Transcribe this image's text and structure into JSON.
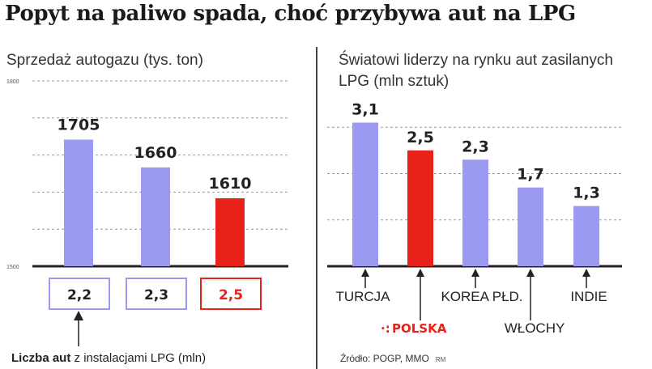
{
  "title": "Popyt na paliwo spada, choć przybywa aut na LPG",
  "colors": {
    "bar": "#9a9af0",
    "highlight": "#e8211b",
    "grid": "#999999",
    "axis": "#222222"
  },
  "chart_data": [
    {
      "type": "bar",
      "title": "Sprzedaż autogazu (tys. ton)",
      "categories": [
        "",
        "",
        ""
      ],
      "values": [
        1705,
        1660,
        1610
      ],
      "value_labels": [
        "1705",
        "1660",
        "1610"
      ],
      "highlight_index": 2,
      "ylim": [
        1500,
        1800
      ],
      "ytick_labels": [
        "1800",
        "1500"
      ],
      "grid": true,
      "secondary": {
        "label_bold": "Liczba aut",
        "label_rest": " z instalacjami LPG (mln)",
        "values": [
          "2,2",
          "2,3",
          "2,5"
        ]
      }
    },
    {
      "type": "bar",
      "title": "Światowi liderzy na rynku aut zasilanych LPG (mln sztuk)",
      "categories": [
        "TURCJA",
        "POLSKA",
        "KOREA PŁD.",
        "WŁOCHY",
        "INDIE"
      ],
      "values": [
        3.1,
        2.5,
        2.3,
        1.7,
        1.3
      ],
      "value_labels": [
        "3,1",
        "2,5",
        "2,3",
        "1,7",
        "1,3"
      ],
      "highlight_index": 1,
      "ylim": [
        0,
        4
      ],
      "grid": true
    }
  ],
  "source": "Źródło: POGP, MMO",
  "author_initials": "RM"
}
